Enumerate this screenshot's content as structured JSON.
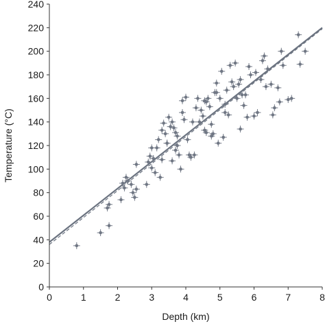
{
  "chart_data": {
    "type": "scatter",
    "title": "",
    "xlabel": "Depth (km)",
    "ylabel": "Temperature (°C)",
    "xlim": [
      0,
      8
    ],
    "ylim": [
      0,
      240
    ],
    "xticks": [
      0,
      1,
      2,
      3,
      4,
      5,
      6,
      7,
      8
    ],
    "yticks": [
      0,
      20,
      40,
      60,
      80,
      100,
      120,
      140,
      160,
      180,
      200,
      220,
      240
    ],
    "grid": false,
    "legend": "none",
    "colors": {
      "points": "#707784",
      "line": "#6b7380",
      "axis": "#333333"
    },
    "fit_lines": [
      {
        "style": "solid",
        "from": [
          0,
          38
        ],
        "to": [
          8,
          220
        ]
      },
      {
        "style": "dashed",
        "from": [
          0,
          36
        ],
        "to": [
          8,
          219
        ]
      }
    ],
    "series": [
      {
        "marker": "cross-dot",
        "x": [
          0.8,
          1.5,
          1.75,
          1.75,
          1.7,
          2.1,
          2.15,
          2.25,
          2.3,
          2.45,
          2.5,
          2.55,
          2.55,
          2.85,
          2.9,
          2.95,
          3.0,
          3.1,
          3.15,
          3.2,
          3.25,
          3.3,
          3.35,
          3.4,
          3.45,
          3.5,
          3.55,
          3.6,
          3.65,
          3.7,
          3.75,
          3.8,
          3.85,
          3.9,
          3.95,
          4.0,
          4.05,
          4.1,
          4.15,
          4.2,
          4.3,
          4.35,
          4.4,
          4.45,
          4.5,
          4.55,
          4.6,
          4.65,
          4.7,
          4.75,
          4.8,
          4.85,
          4.9,
          4.95,
          5.0,
          5.05,
          5.1,
          5.15,
          5.2,
          5.3,
          5.35,
          5.4,
          5.45,
          5.5,
          5.55,
          5.6,
          5.65,
          5.7,
          5.8,
          5.85,
          5.9,
          6.0,
          6.05,
          6.1,
          6.2,
          6.25,
          6.3,
          6.4,
          6.5,
          6.6,
          6.7,
          6.75,
          6.8,
          6.85,
          7.0,
          7.1,
          7.3,
          7.35,
          7.5,
          3.3,
          3.6,
          3.75,
          4.25,
          4.6,
          5.15,
          5.6,
          6.35,
          6.55,
          3.05,
          3.45,
          3.9,
          4.55,
          4.75,
          5.25,
          5.75,
          2.2,
          2.4,
          3.7,
          3.0,
          4.9
        ],
        "y": [
          35,
          46,
          52,
          70,
          67,
          74,
          88,
          93,
          90,
          80,
          76,
          83,
          104,
          87,
          106,
          111,
          101,
          97,
          118,
          125,
          93,
          133,
          139,
          130,
          122,
          144,
          136,
          140,
          135,
          116,
          120,
          112,
          100,
          158,
          142,
          161,
          125,
          112,
          110,
          140,
          152,
          160,
          140,
          150,
          145,
          133,
          157,
          160,
          153,
          138,
          130,
          165,
          173,
          122,
          160,
          183,
          127,
          155,
          167,
          188,
          174,
          170,
          190,
          160,
          172,
          176,
          163,
          154,
          144,
          187,
          180,
          145,
          182,
          148,
          176,
          192,
          196,
          185,
          172,
          152,
          169,
          157,
          200,
          188,
          159,
          160,
          214,
          189,
          200,
          108,
          107,
          128,
          112,
          131,
          148,
          134,
          170,
          146,
          109,
          122,
          148,
          158,
          128,
          146,
          163,
          84,
          87,
          131,
          118,
          165
        ]
      }
    ]
  }
}
